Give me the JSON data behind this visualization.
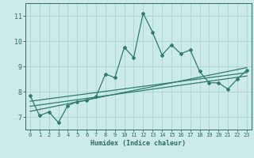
{
  "xlabel": "Humidex (Indice chaleur)",
  "bg_color": "#cceae8",
  "grid_color": "#aad4d0",
  "line_color": "#2d7d6e",
  "font_color": "#2d6b60",
  "xlim": [
    -0.5,
    23.5
  ],
  "ylim": [
    6.5,
    11.5
  ],
  "yticks": [
    7,
    8,
    9,
    10,
    11
  ],
  "xticks": [
    0,
    1,
    2,
    3,
    4,
    5,
    6,
    7,
    8,
    9,
    10,
    11,
    12,
    13,
    14,
    15,
    16,
    17,
    18,
    19,
    20,
    21,
    22,
    23
  ],
  "main_x": [
    0,
    1,
    2,
    3,
    4,
    5,
    6,
    7,
    8,
    9,
    10,
    11,
    12,
    13,
    14,
    15,
    16,
    17,
    18,
    19,
    20,
    21,
    22,
    23
  ],
  "main_y": [
    7.85,
    7.05,
    7.2,
    6.78,
    7.45,
    7.6,
    7.65,
    7.8,
    8.7,
    8.55,
    9.75,
    9.35,
    11.1,
    10.35,
    9.45,
    9.85,
    9.5,
    9.65,
    8.8,
    8.35,
    8.35,
    8.1,
    8.5,
    8.85
  ],
  "reg_line1_x": [
    0,
    23
  ],
  "reg_line1_y": [
    7.62,
    8.75
  ],
  "reg_line2_x": [
    0,
    23
  ],
  "reg_line2_y": [
    7.42,
    8.62
  ],
  "reg_line3_x": [
    0,
    23
  ],
  "reg_line3_y": [
    7.22,
    8.95
  ]
}
